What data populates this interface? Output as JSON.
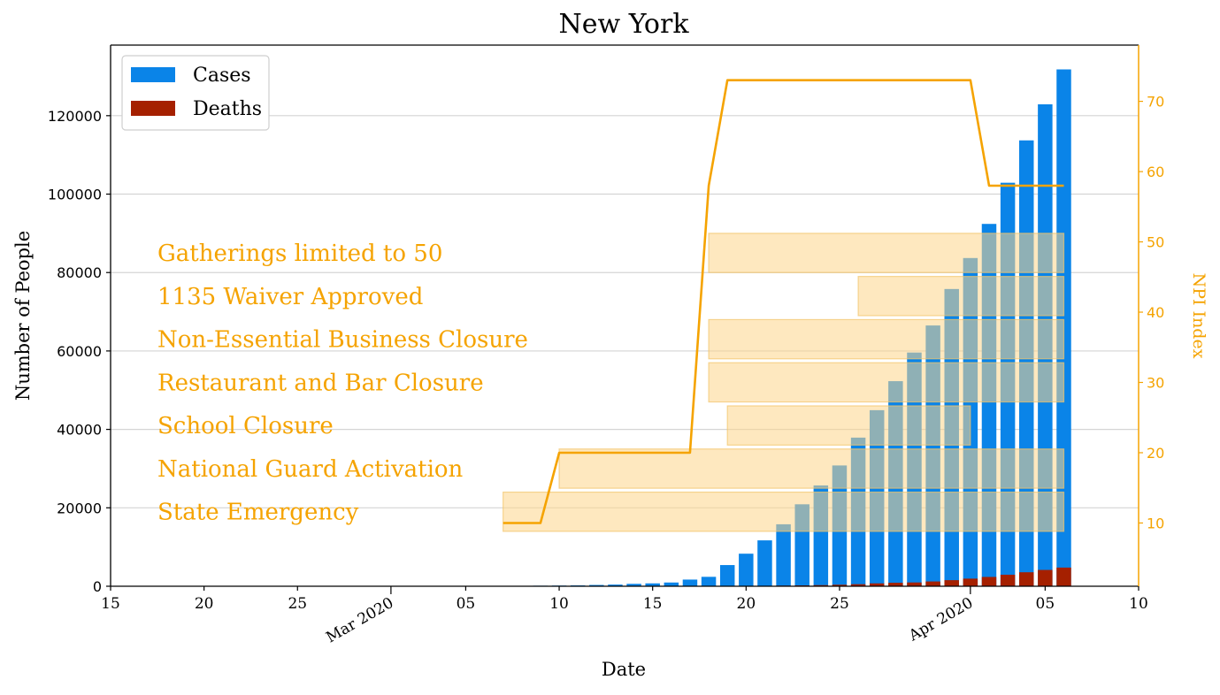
{
  "chart_data": {
    "type": "bar",
    "title": "New York",
    "xlabel": "Date",
    "ylabel": "Number of People",
    "y2label": "NPI Index",
    "xlim": [
      "2020-02-15",
      "2020-04-10"
    ],
    "ylim": [
      0,
      138000
    ],
    "y2lim": [
      1,
      78
    ],
    "grid": "horizontal",
    "legend_position": "top-left",
    "x_ticks": [
      {
        "date": "2020-02-15",
        "label": "15"
      },
      {
        "date": "2020-02-20",
        "label": "20"
      },
      {
        "date": "2020-02-25",
        "label": "25"
      },
      {
        "date": "2020-03-05",
        "label": "05"
      },
      {
        "date": "2020-03-10",
        "label": "10"
      },
      {
        "date": "2020-03-15",
        "label": "15"
      },
      {
        "date": "2020-03-20",
        "label": "20"
      },
      {
        "date": "2020-03-25",
        "label": "25"
      },
      {
        "date": "2020-04-05",
        "label": "05"
      },
      {
        "date": "2020-04-10",
        "label": "10"
      }
    ],
    "x_month_ticks": [
      {
        "date": "2020-03-01",
        "label": "Mar 2020"
      },
      {
        "date": "2020-04-01",
        "label": "Apr 2020"
      }
    ],
    "y_ticks": [
      {
        "value": 0,
        "label": "0"
      },
      {
        "value": 20000,
        "label": "20000"
      },
      {
        "value": 40000,
        "label": "40000"
      },
      {
        "value": 60000,
        "label": "60000"
      },
      {
        "value": 80000,
        "label": "80000"
      },
      {
        "value": 100000,
        "label": "100000"
      },
      {
        "value": 120000,
        "label": "120000"
      }
    ],
    "y2_ticks": [
      {
        "value": 10,
        "label": "10"
      },
      {
        "value": 20,
        "label": "20"
      },
      {
        "value": 30,
        "label": "30"
      },
      {
        "value": 40,
        "label": "40"
      },
      {
        "value": 50,
        "label": "50"
      },
      {
        "value": 60,
        "label": "60"
      },
      {
        "value": 70,
        "label": "70"
      }
    ],
    "dates": [
      "2020-03-01",
      "2020-03-02",
      "2020-03-03",
      "2020-03-04",
      "2020-03-05",
      "2020-03-06",
      "2020-03-07",
      "2020-03-08",
      "2020-03-09",
      "2020-03-10",
      "2020-03-11",
      "2020-03-12",
      "2020-03-13",
      "2020-03-14",
      "2020-03-15",
      "2020-03-16",
      "2020-03-17",
      "2020-03-18",
      "2020-03-19",
      "2020-03-20",
      "2020-03-21",
      "2020-03-22",
      "2020-03-23",
      "2020-03-24",
      "2020-03-25",
      "2020-03-26",
      "2020-03-27",
      "2020-03-28",
      "2020-03-29",
      "2020-03-30",
      "2020-03-31",
      "2020-04-01",
      "2020-04-02",
      "2020-04-03",
      "2020-04-04",
      "2020-04-05",
      "2020-04-06"
    ],
    "series": [
      {
        "name": "Cases",
        "color": "#0a84e8",
        "values": [
          1,
          1,
          2,
          11,
          22,
          44,
          89,
          106,
          142,
          173,
          217,
          326,
          421,
          610,
          732,
          950,
          1700,
          2400,
          5400,
          8300,
          11700,
          15800,
          20900,
          25700,
          30800,
          37900,
          44900,
          52300,
          59600,
          66500,
          75800,
          83700,
          92400,
          102900,
          113700,
          122900,
          131800
        ]
      },
      {
        "name": "Deaths",
        "color": "#a52000",
        "values": [
          0,
          0,
          0,
          0,
          0,
          0,
          0,
          0,
          0,
          0,
          0,
          0,
          0,
          0,
          3,
          10,
          17,
          27,
          56,
          80,
          114,
          157,
          210,
          285,
          385,
          519,
          728,
          884,
          965,
          1220,
          1550,
          1940,
          2370,
          2935,
          3565,
          4160,
          4760
        ]
      }
    ],
    "npi_line": {
      "color": "#f5a300",
      "points": [
        {
          "date": "2020-03-07",
          "value": 10
        },
        {
          "date": "2020-03-09",
          "value": 10
        },
        {
          "date": "2020-03-10",
          "value": 20
        },
        {
          "date": "2020-03-17",
          "value": 20
        },
        {
          "date": "2020-03-18",
          "value": 58
        },
        {
          "date": "2020-03-19",
          "value": 73
        },
        {
          "date": "2020-04-01",
          "value": 73
        },
        {
          "date": "2020-04-02",
          "value": 58
        },
        {
          "date": "2020-04-06",
          "value": 58
        }
      ]
    },
    "npi_bands": [
      {
        "label": "Gatherings limited to 50",
        "start": "2020-03-18",
        "end": "2020-04-06",
        "lo": 80000,
        "hi": 90000
      },
      {
        "label": "1135 Waiver Approved",
        "start": "2020-03-26",
        "end": "2020-04-06",
        "lo": 69000,
        "hi": 79000
      },
      {
        "label": "Non-Essential Business Closure",
        "start": "2020-03-18",
        "end": "2020-04-06",
        "lo": 58000,
        "hi": 68000
      },
      {
        "label": "Restaurant and Bar Closure",
        "start": "2020-03-18",
        "end": "2020-04-06",
        "lo": 47000,
        "hi": 57000
      },
      {
        "label": "School Closure",
        "start": "2020-03-19",
        "end": "2020-04-01",
        "lo": 36000,
        "hi": 46000
      },
      {
        "label": "National Guard Activation",
        "start": "2020-03-10",
        "end": "2020-04-06",
        "lo": 25000,
        "hi": 35000
      },
      {
        "label": "State Emergency",
        "start": "2020-03-07",
        "end": "2020-04-06",
        "lo": 14000,
        "hi": 24000
      }
    ],
    "band_color": "#fdd58a",
    "annotation_color": "#f5a300"
  }
}
